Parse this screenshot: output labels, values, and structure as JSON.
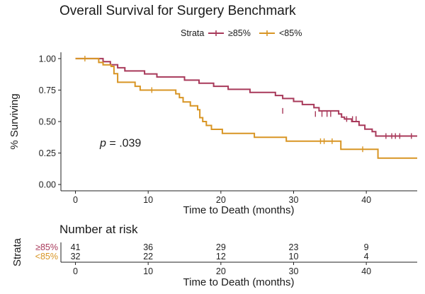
{
  "chart_data": {
    "type": "line",
    "title": "Overall Survival for Surgery Benchmark",
    "xlabel": "Time to Death (months)",
    "ylabel": "% Surviving",
    "xlim": [
      -2,
      47
    ],
    "ylim": [
      -0.05,
      1.05
    ],
    "x_ticks": [
      0,
      10,
      20,
      30,
      40
    ],
    "y_ticks": [
      0.0,
      0.25,
      0.5,
      0.75,
      1.0
    ],
    "y_tick_labels": [
      "0.00",
      "0.25",
      "0.50",
      "0.75",
      "1.00"
    ],
    "grid": false,
    "legend": {
      "title": "Strata",
      "placement": "top"
    },
    "annotation": {
      "italic": "p",
      "rest": " = .039",
      "x": 2,
      "y": 0.3
    },
    "series": [
      {
        "name": "≥85%",
        "color": "#a8395a",
        "steps": [
          [
            0,
            1.0
          ],
          [
            3.8,
            0.976
          ],
          [
            4.8,
            0.951
          ],
          [
            5.8,
            0.927
          ],
          [
            6.8,
            0.902
          ],
          [
            9.5,
            0.878
          ],
          [
            11.2,
            0.854
          ],
          [
            15.0,
            0.829
          ],
          [
            17.0,
            0.805
          ],
          [
            19.0,
            0.78
          ],
          [
            21.0,
            0.756
          ],
          [
            24.0,
            0.732
          ],
          [
            27.5,
            0.707
          ],
          [
            28.5,
            0.683
          ],
          [
            30.0,
            0.66
          ],
          [
            31.2,
            0.635
          ],
          [
            32.8,
            0.61
          ],
          [
            33.5,
            0.585
          ],
          [
            36.2,
            0.56
          ],
          [
            36.6,
            0.535
          ],
          [
            37.0,
            0.52
          ],
          [
            38.0,
            0.5
          ],
          [
            39.0,
            0.47
          ],
          [
            39.8,
            0.44
          ],
          [
            40.8,
            0.42
          ],
          [
            41.3,
            0.385
          ],
          [
            47,
            0.385
          ]
        ],
        "censored": [
          [
            28.5,
            0.585
          ],
          [
            33.0,
            0.56
          ],
          [
            33.9,
            0.56
          ],
          [
            34.6,
            0.56
          ],
          [
            35.1,
            0.56
          ],
          [
            37.3,
            0.52
          ],
          [
            38.1,
            0.52
          ],
          [
            38.6,
            0.52
          ],
          [
            42.7,
            0.385
          ],
          [
            43.5,
            0.385
          ],
          [
            44.0,
            0.385
          ],
          [
            44.6,
            0.385
          ],
          [
            46.2,
            0.385
          ]
        ]
      },
      {
        "name": "<85%",
        "color": "#d89524",
        "steps": [
          [
            0,
            1.0
          ],
          [
            3.2,
            0.969
          ],
          [
            3.8,
            0.95
          ],
          [
            4.9,
            0.938
          ],
          [
            5.3,
            0.88
          ],
          [
            5.8,
            0.812
          ],
          [
            8.2,
            0.78
          ],
          [
            8.9,
            0.75
          ],
          [
            13.8,
            0.72
          ],
          [
            14.3,
            0.69
          ],
          [
            14.8,
            0.656
          ],
          [
            15.8,
            0.625
          ],
          [
            16.8,
            0.594
          ],
          [
            17.1,
            0.531
          ],
          [
            17.5,
            0.5
          ],
          [
            18.0,
            0.469
          ],
          [
            18.7,
            0.438
          ],
          [
            20.2,
            0.406
          ],
          [
            24.6,
            0.375
          ],
          [
            29.0,
            0.344
          ],
          [
            36.5,
            0.28
          ],
          [
            41.6,
            0.21
          ],
          [
            47,
            0.21
          ]
        ],
        "censored": [
          [
            1.3,
            1.0
          ],
          [
            10.5,
            0.75
          ],
          [
            33.7,
            0.344
          ],
          [
            34.2,
            0.344
          ],
          [
            35.3,
            0.344
          ],
          [
            39.5,
            0.28
          ]
        ]
      }
    ]
  },
  "risk_table": {
    "title": "Number at risk",
    "y_title": "Strata",
    "xlabel": "Time to Death (months)",
    "times": [
      0,
      10,
      20,
      30,
      40
    ],
    "rows": [
      {
        "label": "≥85%",
        "color": "#a8395a",
        "values": [
          "41",
          "36",
          "29",
          "23",
          "9"
        ]
      },
      {
        "label": "<85%",
        "color": "#d89524",
        "values": [
          "32",
          "22",
          "12",
          "10",
          "4"
        ]
      }
    ]
  }
}
